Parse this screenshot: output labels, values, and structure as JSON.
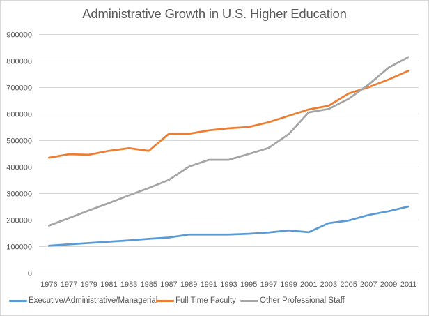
{
  "chart_data": {
    "type": "line",
    "title": "Administrative Growth in U.S. Higher Education",
    "xlabel": "",
    "ylabel": "",
    "categories": [
      "1976",
      "1977",
      "1979",
      "1981",
      "1983",
      "1985",
      "1987",
      "1989",
      "1991",
      "1993",
      "1995",
      "1997",
      "1999",
      "2001",
      "2003",
      "2005",
      "2007",
      "2009",
      "2011"
    ],
    "ylim": [
      0,
      900000
    ],
    "yticks": [
      0,
      100000,
      200000,
      300000,
      400000,
      500000,
      600000,
      700000,
      800000,
      900000
    ],
    "ytick_labels": [
      "0",
      "100000",
      "200000",
      "300000",
      "400000",
      "500000",
      "600000",
      "700000",
      "800000",
      "900000"
    ],
    "grid": true,
    "legend_position": "bottom",
    "series": [
      {
        "name": "Executive/Administrative/Managerial",
        "color": "#5b9bd5",
        "values": [
          102000,
          107000,
          112000,
          117000,
          122000,
          128000,
          133000,
          144000,
          144000,
          144000,
          147000,
          152000,
          160000,
          153000,
          187000,
          197000,
          218000,
          232000,
          250000
        ]
      },
      {
        "name": "Full Time Faculty",
        "color": "#ed7d31",
        "values": [
          434000,
          447000,
          445000,
          460000,
          470000,
          460000,
          524000,
          524000,
          537000,
          545000,
          550000,
          568000,
          592000,
          616000,
          630000,
          676000,
          700000,
          729000,
          762000
        ]
      },
      {
        "name": "Other Professional Staff",
        "color": "#a5a5a5",
        "values": [
          178000,
          206000,
          235000,
          263000,
          292000,
          320000,
          350000,
          400000,
          426000,
          426000,
          448000,
          471000,
          523000,
          605000,
          618000,
          656000,
          710000,
          774000,
          814000
        ]
      }
    ]
  },
  "colors": {
    "gridline": "#d9d9d9",
    "text": "#595959",
    "border": "#d9d9d9"
  }
}
